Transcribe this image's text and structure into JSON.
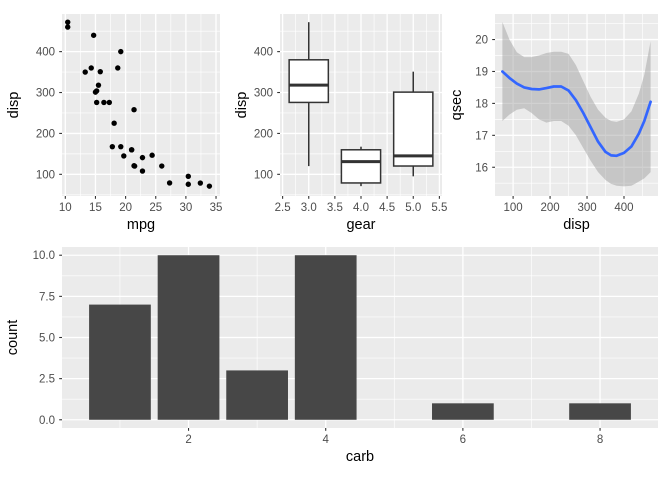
{
  "colors": {
    "panel_bg": "#EBEBEB",
    "grid": "#FFFFFF",
    "tick_mark": "#333333",
    "tick_label": "#4D4D4D",
    "axis_title": "#000000",
    "point": "#000000",
    "box_stroke": "#333333",
    "box_fill": "#FFFFFF",
    "smooth_line": "#3366FF",
    "ribbon": "#999999",
    "bar_fill": "#474747"
  },
  "chart_data": [
    {
      "type": "scatter",
      "xlabel": "mpg",
      "ylabel": "disp",
      "x_domain": [
        9.45,
        35.66
      ],
      "y_domain": [
        47,
        492
      ],
      "x_ticks": [
        [
          10,
          "10"
        ],
        [
          15,
          "15"
        ],
        [
          20,
          "20"
        ],
        [
          25,
          "25"
        ],
        [
          30,
          "30"
        ],
        [
          35,
          "35"
        ]
      ],
      "y_ticks": [
        [
          100,
          "100"
        ],
        [
          200,
          "200"
        ],
        [
          300,
          "300"
        ],
        [
          400,
          "400"
        ]
      ],
      "x_minor": [
        12.5,
        17.5,
        22.5,
        27.5,
        32.5
      ],
      "y_minor": [
        50,
        150,
        250,
        350,
        450
      ],
      "points": [
        [
          21,
          160
        ],
        [
          21,
          160
        ],
        [
          22.8,
          108
        ],
        [
          21.4,
          258
        ],
        [
          18.7,
          360
        ],
        [
          18.1,
          225
        ],
        [
          14.3,
          360
        ],
        [
          24.4,
          146.7
        ],
        [
          22.8,
          140.8
        ],
        [
          19.2,
          167.6
        ],
        [
          17.8,
          167.6
        ],
        [
          16.4,
          275.8
        ],
        [
          17.3,
          275.8
        ],
        [
          15.2,
          275.8
        ],
        [
          10.4,
          472
        ],
        [
          10.4,
          460
        ],
        [
          14.7,
          440
        ],
        [
          32.4,
          78.7
        ],
        [
          30.4,
          75.7
        ],
        [
          33.9,
          71.1
        ],
        [
          21.5,
          120.1
        ],
        [
          15.5,
          318
        ],
        [
          15.2,
          304
        ],
        [
          13.3,
          350
        ],
        [
          19.2,
          400
        ],
        [
          27.3,
          79
        ],
        [
          26,
          120.3
        ],
        [
          30.4,
          95.1
        ],
        [
          15.8,
          351
        ],
        [
          19.7,
          145
        ],
        [
          15,
          301
        ],
        [
          21.4,
          121
        ]
      ]
    },
    {
      "type": "boxplot",
      "xlabel": "gear",
      "ylabel": "disp",
      "x_domain": [
        2.45,
        5.55
      ],
      "y_domain": [
        47,
        492
      ],
      "x_ticks": [
        [
          2.5,
          "2.5"
        ],
        [
          3,
          "3.0"
        ],
        [
          3.5,
          "3.5"
        ],
        [
          4,
          "4.0"
        ],
        [
          4.5,
          "4.5"
        ],
        [
          5,
          "5.0"
        ],
        [
          5.5,
          "5.5"
        ]
      ],
      "y_ticks": [
        [
          100,
          "100"
        ],
        [
          200,
          "200"
        ],
        [
          300,
          "300"
        ],
        [
          400,
          "400"
        ]
      ],
      "x_minor": [
        2.75,
        3.25,
        3.75,
        4.25,
        4.75,
        5.25
      ],
      "y_minor": [
        50,
        150,
        250,
        350,
        450
      ],
      "box_width": 0.75,
      "boxes": [
        {
          "x": 3,
          "min": 120.1,
          "q1": 275.8,
          "med": 318,
          "q3": 380,
          "max": 472
        },
        {
          "x": 4,
          "min": 71.1,
          "q1": 78.9,
          "med": 130.9,
          "q3": 160,
          "max": 167.6
        },
        {
          "x": 5,
          "min": 95.1,
          "q1": 120.3,
          "med": 145,
          "q3": 301,
          "max": 351
        }
      ]
    },
    {
      "type": "smooth",
      "xlabel": "disp",
      "ylabel": "qsec",
      "x_domain": [
        51,
        492
      ],
      "y_domain": [
        15.1,
        20.8
      ],
      "x_ticks": [
        [
          100,
          "100"
        ],
        [
          200,
          "200"
        ],
        [
          300,
          "300"
        ],
        [
          400,
          "400"
        ]
      ],
      "y_ticks": [
        [
          16,
          "16"
        ],
        [
          17,
          "17"
        ],
        [
          18,
          "18"
        ],
        [
          19,
          "19"
        ],
        [
          20,
          "20"
        ]
      ],
      "x_minor": [
        150,
        250,
        350,
        450
      ],
      "y_minor": [
        15.5,
        16.5,
        17.5,
        18.5,
        19.5,
        20.5
      ],
      "line": [
        [
          71,
          19.0
        ],
        [
          90,
          18.8
        ],
        [
          110,
          18.62
        ],
        [
          130,
          18.5
        ],
        [
          150,
          18.45
        ],
        [
          170,
          18.44
        ],
        [
          190,
          18.48
        ],
        [
          210,
          18.53
        ],
        [
          230,
          18.53
        ],
        [
          250,
          18.4
        ],
        [
          270,
          18.1
        ],
        [
          290,
          17.7
        ],
        [
          310,
          17.25
        ],
        [
          330,
          16.8
        ],
        [
          350,
          16.48
        ],
        [
          365,
          16.37
        ],
        [
          380,
          16.36
        ],
        [
          400,
          16.45
        ],
        [
          420,
          16.65
        ],
        [
          440,
          17.05
        ],
        [
          455,
          17.45
        ],
        [
          472,
          18.05
        ]
      ],
      "upper": [
        [
          71,
          20.55
        ],
        [
          90,
          20.0
        ],
        [
          110,
          19.6
        ],
        [
          130,
          19.45
        ],
        [
          150,
          19.45
        ],
        [
          170,
          19.5
        ],
        [
          190,
          19.58
        ],
        [
          210,
          19.62
        ],
        [
          230,
          19.62
        ],
        [
          250,
          19.55
        ],
        [
          270,
          19.2
        ],
        [
          290,
          18.7
        ],
        [
          310,
          18.2
        ],
        [
          330,
          17.8
        ],
        [
          350,
          17.55
        ],
        [
          365,
          17.45
        ],
        [
          380,
          17.42
        ],
        [
          400,
          17.5
        ],
        [
          420,
          17.75
        ],
        [
          440,
          18.3
        ],
        [
          455,
          18.9
        ],
        [
          472,
          19.95
        ]
      ],
      "lower": [
        [
          71,
          17.45
        ],
        [
          90,
          17.65
        ],
        [
          110,
          17.8
        ],
        [
          130,
          17.85
        ],
        [
          150,
          17.7
        ],
        [
          170,
          17.5
        ],
        [
          190,
          17.4
        ],
        [
          210,
          17.45
        ],
        [
          230,
          17.45
        ],
        [
          250,
          17.3
        ],
        [
          270,
          17.0
        ],
        [
          290,
          16.6
        ],
        [
          310,
          16.2
        ],
        [
          330,
          15.85
        ],
        [
          350,
          15.6
        ],
        [
          365,
          15.48
        ],
        [
          380,
          15.42
        ],
        [
          400,
          15.4
        ],
        [
          420,
          15.42
        ],
        [
          440,
          15.55
        ],
        [
          455,
          15.65
        ],
        [
          472,
          15.85
        ]
      ]
    },
    {
      "type": "bar",
      "xlabel": "carb",
      "ylabel": "count",
      "x_domain": [
        0.155,
        8.845
      ],
      "y_domain": [
        -0.5,
        10.5
      ],
      "x_ticks": [
        [
          2,
          "2"
        ],
        [
          4,
          "4"
        ],
        [
          6,
          "6"
        ],
        [
          8,
          "8"
        ]
      ],
      "y_ticks": [
        [
          0,
          "0.0"
        ],
        [
          2.5,
          "2.5"
        ],
        [
          5,
          "5.0"
        ],
        [
          7.5,
          "7.5"
        ],
        [
          10,
          "10.0"
        ]
      ],
      "x_minor": [
        1,
        3,
        5,
        7
      ],
      "y_minor": [
        1.25,
        3.75,
        6.25,
        8.75
      ],
      "bar_width": 0.9,
      "bars": [
        {
          "x": 1,
          "h": 7
        },
        {
          "x": 2,
          "h": 10
        },
        {
          "x": 3,
          "h": 3
        },
        {
          "x": 4,
          "h": 10
        },
        {
          "x": 6,
          "h": 1
        },
        {
          "x": 8,
          "h": 1
        }
      ]
    }
  ]
}
